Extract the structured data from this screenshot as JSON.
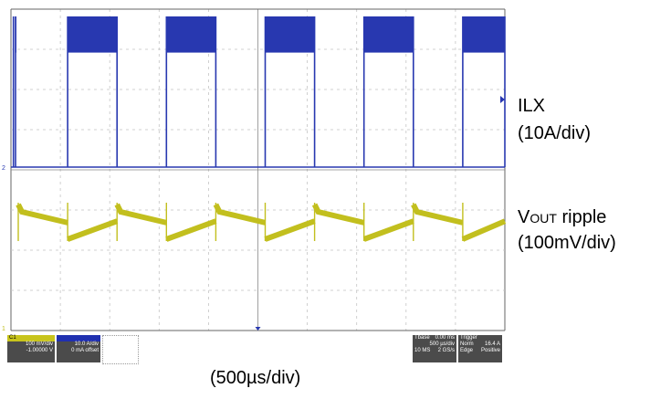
{
  "page": {
    "caption": "(500µs/div)"
  },
  "labels": {
    "ilx_name": "ILX",
    "ilx_scale": "(10A/div)",
    "vout_v": "V",
    "vout_sub": "OUT",
    "vout_rest": " ripple",
    "vout_scale": "(100mV/div)"
  },
  "status": {
    "ch1_header": "C1",
    "ch1_line1": "100 mV/div",
    "ch1_line2": "-1.00000 V",
    "ch2_line1": "10.0 A/div",
    "ch2_line2": "0 mA offset",
    "tbase_label": "Tbase",
    "tbase_value": "0.00 ms",
    "tbase_div": "500 µs/div",
    "tbase_ms": "10 MS",
    "tbase_rate": "2 GS/s",
    "trigger_label": "Trigger",
    "trigger_mode": "Norm",
    "trigger_level": "16.4 A",
    "trigger_type": "Edge",
    "trigger_slope": "Positive"
  },
  "chart_data": {
    "type": "line",
    "title": "",
    "xlabel": "(500µs/div)",
    "grid": true,
    "x_divisions": 10,
    "y_divisions": 8,
    "series": [
      {
        "name": "ILX",
        "color": "#2838b0",
        "scale": "10A/div",
        "shape": "square_pulse",
        "pulse_starts_div": [
          0.0,
          1.0,
          3.0,
          5.0,
          7.0,
          9.0
        ],
        "pulse_ends_div": [
          0.05,
          2.0,
          4.0,
          6.0,
          8.0,
          10.0
        ],
        "low_level_div": 0.0,
        "high_level_div": 3.3,
        "ripple_band_div": 0.9
      },
      {
        "name": "VOUT ripple",
        "color": "#c2bf1e",
        "scale": "100mV/div",
        "shape": "sawtooth_ripple",
        "transitions_div": [
          0.0,
          1.0,
          2.0,
          3.0,
          4.0,
          5.0,
          6.0,
          7.0,
          8.0,
          9.0,
          10.0
        ],
        "ripple_pp_div": 0.45
      }
    ]
  }
}
